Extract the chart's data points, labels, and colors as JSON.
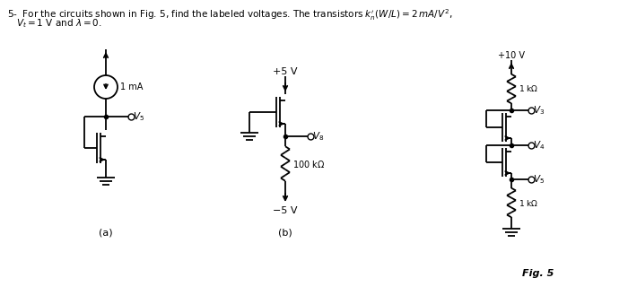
{
  "bg_color": "#ffffff",
  "circuit_color": "#000000",
  "text_color": "#000000",
  "fig_label": "Fig. 5",
  "label_a": "(a)",
  "label_b": "(b)"
}
